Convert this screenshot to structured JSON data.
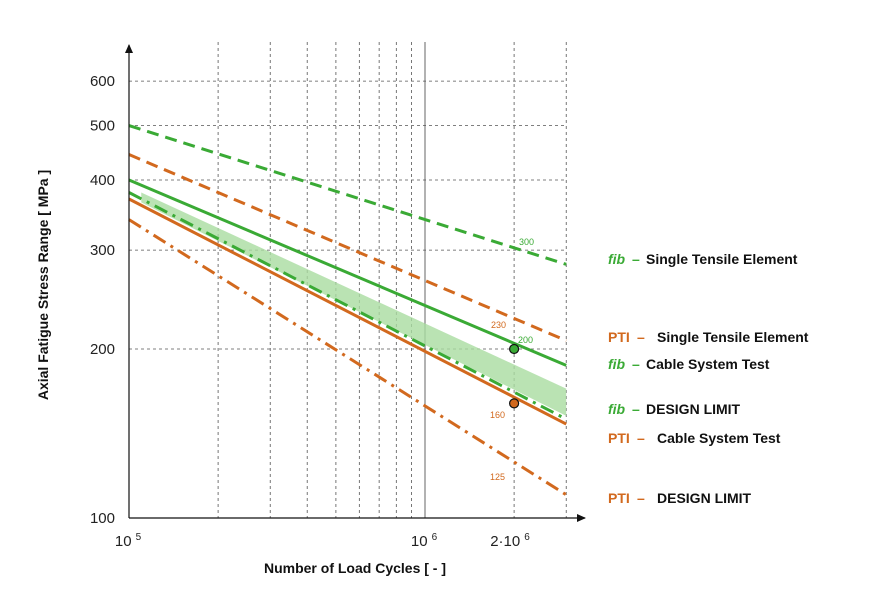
{
  "colors": {
    "green": "#3aaa35",
    "orange": "#d2691e",
    "band": "#a9dca0",
    "grid": "#555555"
  },
  "chart_data": {
    "type": "line",
    "xscale": "log",
    "yscale": "log",
    "xlim": [
      100000,
      3000000
    ],
    "ylim": [
      100,
      700
    ],
    "xlabel": "Number of Load Cycles  [ - ]",
    "ylabel": "Axial Fatigue Stress Range  [ MPa ]",
    "x_ticks": [
      {
        "value": 100000,
        "base": "10",
        "exp": "5"
      },
      {
        "value": 1000000,
        "base": "10",
        "exp": "6"
      },
      {
        "value": 2000000,
        "base": "2·10",
        "exp": "6"
      }
    ],
    "y_ticks": [
      100,
      200,
      300,
      400,
      500,
      600
    ],
    "grid": true,
    "series": [
      {
        "name": "Single Tensile Element",
        "prefix": "fib",
        "prefix_italic": true,
        "color": "green",
        "dash": "dashed",
        "x": [
          100000,
          3000000
        ],
        "y": [
          500,
          283
        ],
        "label_value": 300
      },
      {
        "name": "Single Tensile Element",
        "prefix": "PTI",
        "prefix_italic": false,
        "color": "orange",
        "dash": "dashed",
        "x": [
          100000,
          3000000
        ],
        "y": [
          444,
          207
        ],
        "label_value": 230
      },
      {
        "name": "Cable System Test",
        "prefix": "fib",
        "prefix_italic": true,
        "color": "green",
        "dash": "solid",
        "x": [
          100000,
          3000000
        ],
        "y": [
          400,
          187
        ],
        "label_value": 200
      },
      {
        "name": "DESIGN LIMIT",
        "prefix": "fib",
        "prefix_italic": true,
        "color": "green",
        "dash": "dashdot",
        "x": [
          100000,
          3000000
        ],
        "y": [
          380,
          150
        ]
      },
      {
        "name": "Cable System Test",
        "prefix": "PTI",
        "prefix_italic": false,
        "color": "orange",
        "dash": "solid",
        "x": [
          100000,
          3000000
        ],
        "y": [
          370,
          147
        ],
        "label_value": 160
      },
      {
        "name": "DESIGN LIMIT",
        "prefix": "PTI",
        "prefix_italic": false,
        "color": "orange",
        "dash": "dashdot",
        "x": [
          100000,
          3000000
        ],
        "y": [
          340,
          110
        ],
        "label_value": 125
      }
    ],
    "band": {
      "x": [
        110000,
        3000000
      ],
      "upper": [
        380,
        170
      ],
      "lower": [
        365,
        152
      ]
    },
    "markers": [
      {
        "x": 2000000,
        "y": 200,
        "color": "green"
      },
      {
        "x": 2000000,
        "y": 160,
        "color": "orange"
      }
    ]
  }
}
